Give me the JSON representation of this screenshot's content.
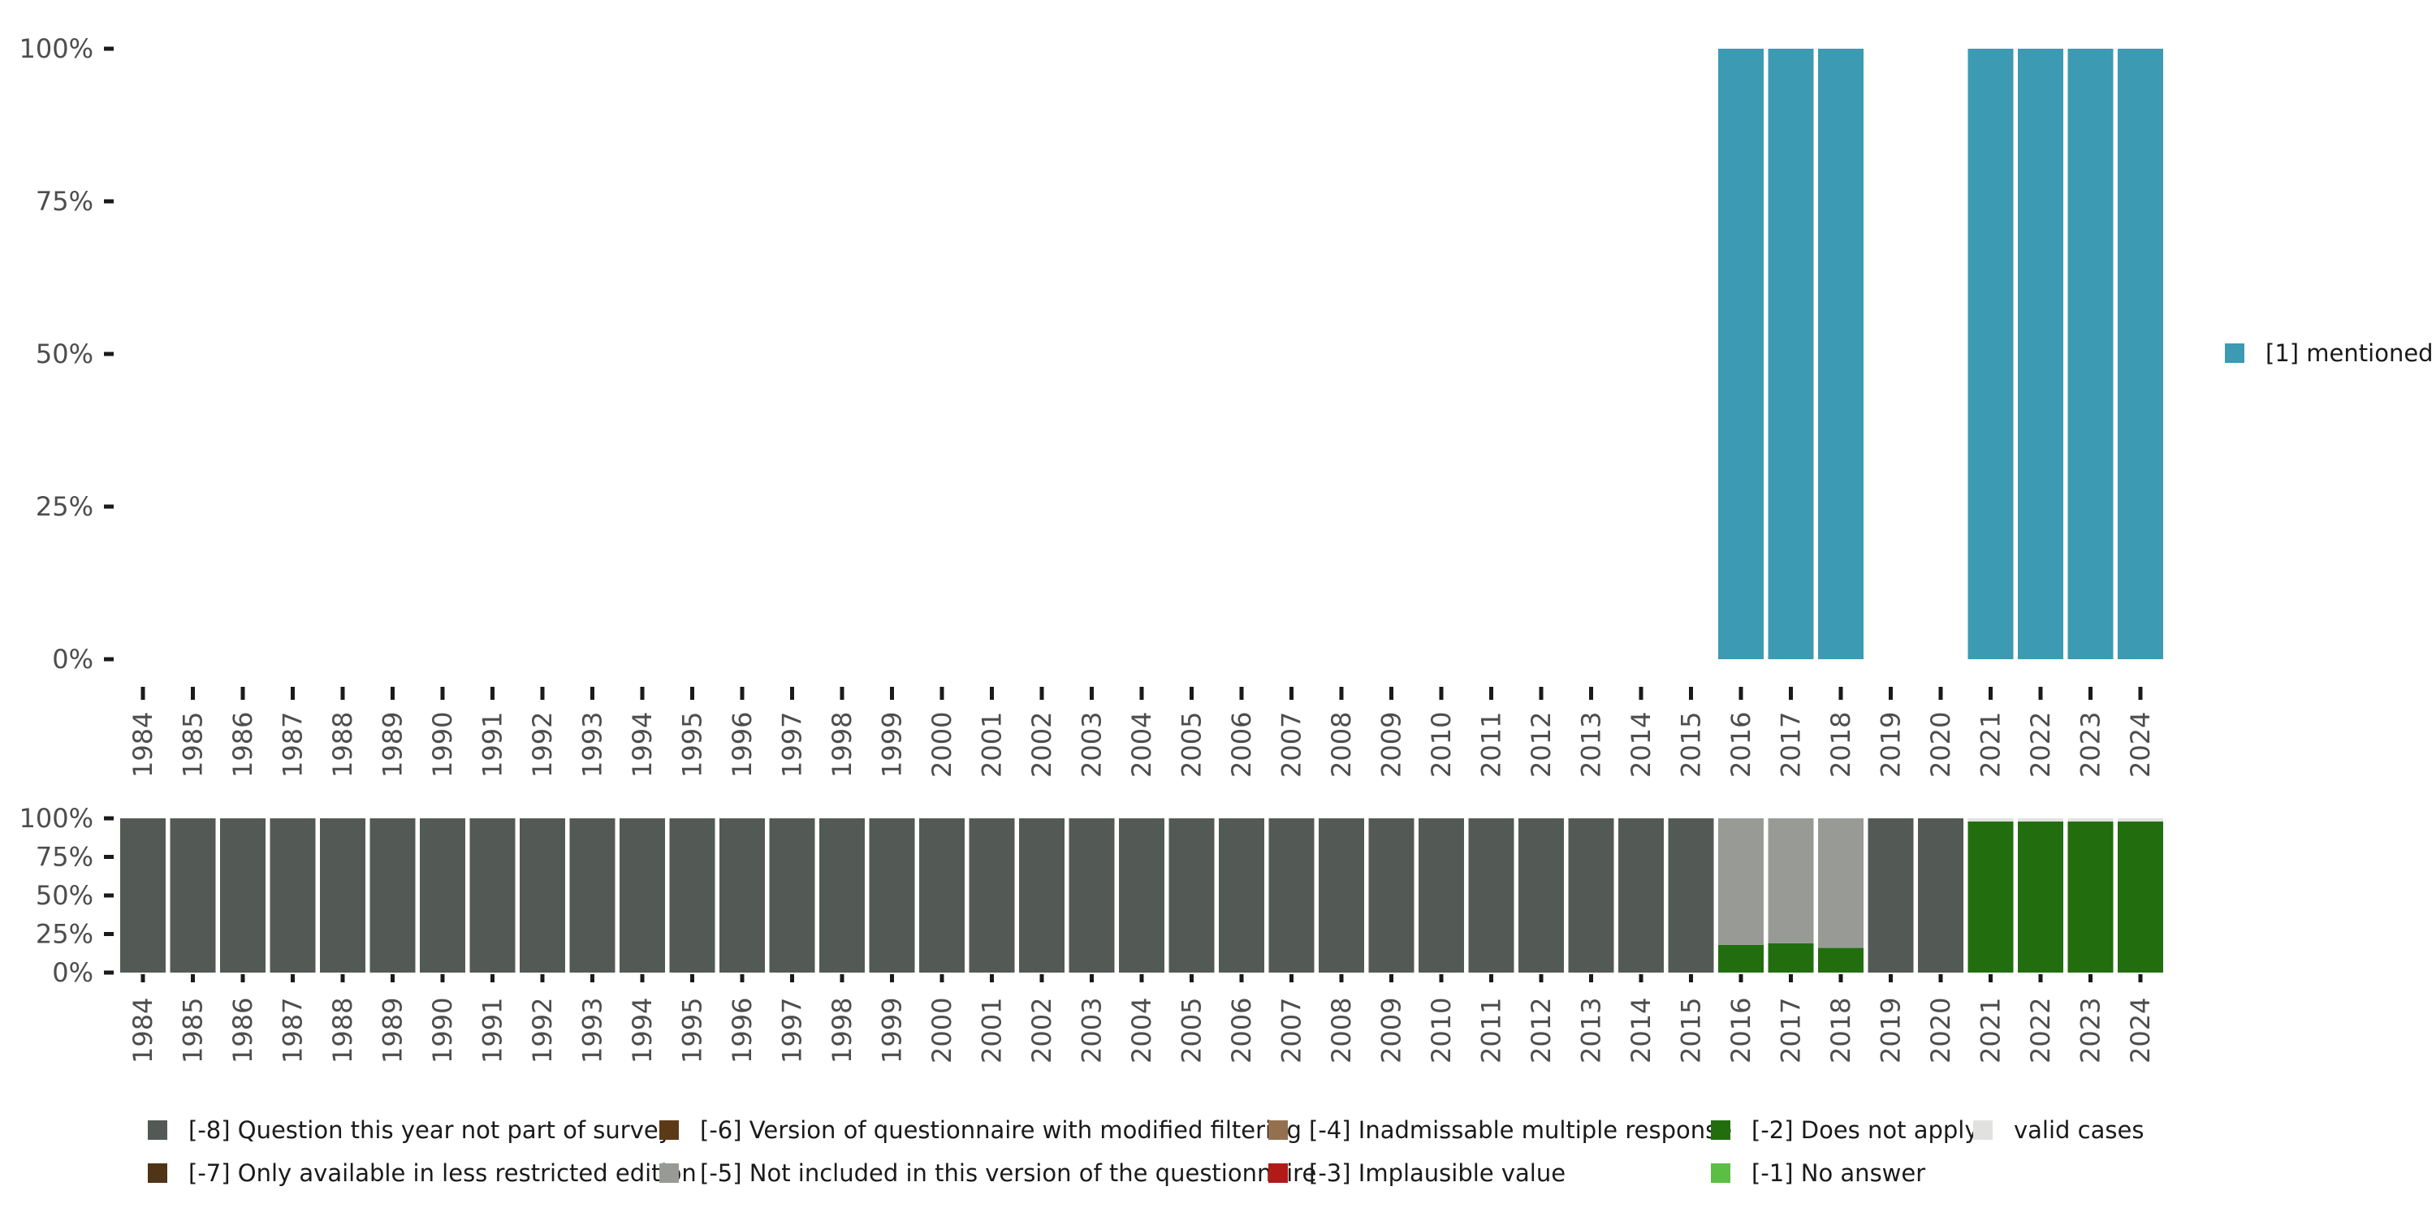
{
  "chart_data": [
    {
      "type": "bar",
      "stacked": true,
      "categories": [
        "1984",
        "1985",
        "1986",
        "1987",
        "1988",
        "1989",
        "1990",
        "1991",
        "1992",
        "1993",
        "1994",
        "1995",
        "1996",
        "1997",
        "1998",
        "1999",
        "2000",
        "2001",
        "2002",
        "2003",
        "2004",
        "2005",
        "2006",
        "2007",
        "2008",
        "2009",
        "2010",
        "2011",
        "2012",
        "2013",
        "2014",
        "2015",
        "2016",
        "2017",
        "2018",
        "2019",
        "2020",
        "2021",
        "2022",
        "2023",
        "2024"
      ],
      "y_ticks": [
        "0%",
        "25%",
        "50%",
        "75%",
        "100%"
      ],
      "ylim": [
        0,
        100
      ],
      "grid": false,
      "legend_position": "right",
      "series": [
        {
          "name": "[1] mentioned",
          "color": "#3c9ab2",
          "values": [
            0,
            0,
            0,
            0,
            0,
            0,
            0,
            0,
            0,
            0,
            0,
            0,
            0,
            0,
            0,
            0,
            0,
            0,
            0,
            0,
            0,
            0,
            0,
            0,
            0,
            0,
            0,
            0,
            0,
            0,
            0,
            0,
            100,
            100,
            100,
            0,
            0,
            100,
            100,
            100,
            100
          ]
        }
      ]
    },
    {
      "type": "bar",
      "stacked": true,
      "categories": [
        "1984",
        "1985",
        "1986",
        "1987",
        "1988",
        "1989",
        "1990",
        "1991",
        "1992",
        "1993",
        "1994",
        "1995",
        "1996",
        "1997",
        "1998",
        "1999",
        "2000",
        "2001",
        "2002",
        "2003",
        "2004",
        "2005",
        "2006",
        "2007",
        "2008",
        "2009",
        "2010",
        "2011",
        "2012",
        "2013",
        "2014",
        "2015",
        "2016",
        "2017",
        "2018",
        "2019",
        "2020",
        "2021",
        "2022",
        "2023",
        "2024"
      ],
      "y_ticks": [
        "0%",
        "25%",
        "50%",
        "75%",
        "100%"
      ],
      "ylim": [
        0,
        100
      ],
      "grid": false,
      "legend_position": "bottom",
      "series": [
        {
          "name": "[-2] Does not apply",
          "color": "#226e0f",
          "values": [
            0,
            0,
            0,
            0,
            0,
            0,
            0,
            0,
            0,
            0,
            0,
            0,
            0,
            0,
            0,
            0,
            0,
            0,
            0,
            0,
            0,
            0,
            0,
            0,
            0,
            0,
            0,
            0,
            0,
            0,
            0,
            0,
            18,
            19,
            16,
            0,
            0,
            98,
            98,
            98,
            98
          ]
        },
        {
          "name": "valid cases",
          "color": "#e1e2e0",
          "values": [
            0,
            0,
            0,
            0,
            0,
            0,
            0,
            0,
            0,
            0,
            0,
            0,
            0,
            0,
            0,
            0,
            0,
            0,
            0,
            0,
            0,
            0,
            0,
            0,
            0,
            0,
            0,
            0,
            0,
            0,
            0,
            0,
            0,
            0,
            0,
            0,
            0,
            2,
            2,
            2,
            2
          ]
        },
        {
          "name": "[-5] Not included in this version of the questionnaire",
          "color": "#989b95",
          "values": [
            0,
            0,
            0,
            0,
            0,
            0,
            0,
            0,
            0,
            0,
            0,
            0,
            0,
            0,
            0,
            0,
            0,
            0,
            0,
            0,
            0,
            0,
            0,
            0,
            0,
            0,
            0,
            0,
            0,
            0,
            0,
            0,
            82,
            81,
            84,
            0,
            0,
            0,
            0,
            0,
            0
          ]
        },
        {
          "name": "[-8] Question this year not part of survey",
          "color": "#535a55",
          "values": [
            100,
            100,
            100,
            100,
            100,
            100,
            100,
            100,
            100,
            100,
            100,
            100,
            100,
            100,
            100,
            100,
            100,
            100,
            100,
            100,
            100,
            100,
            100,
            100,
            100,
            100,
            100,
            100,
            100,
            100,
            100,
            100,
            0,
            0,
            0,
            100,
            100,
            0,
            0,
            0,
            0
          ]
        }
      ],
      "legend": [
        {
          "label": "[-8] Question this year not part of survey",
          "color": "#535a55"
        },
        {
          "label": "[-7] Only available in less restricted edition",
          "color": "#4f3417"
        },
        {
          "label": "[-6] Version of questionnaire with modified filtering",
          "color": "#5d3a17"
        },
        {
          "label": "[-5] Not included in this version of the questionnaire",
          "color": "#989b95"
        },
        {
          "label": "[-4] Inadmissable multiple response",
          "color": "#94704f"
        },
        {
          "label": "[-3] Implausible value",
          "color": "#b21a1a"
        },
        {
          "label": "[-2] Does not apply",
          "color": "#226e0f"
        },
        {
          "label": "[-1] No answer",
          "color": "#5bbf45"
        },
        {
          "label": "valid cases",
          "color": "#e1e2e0"
        }
      ]
    }
  ]
}
